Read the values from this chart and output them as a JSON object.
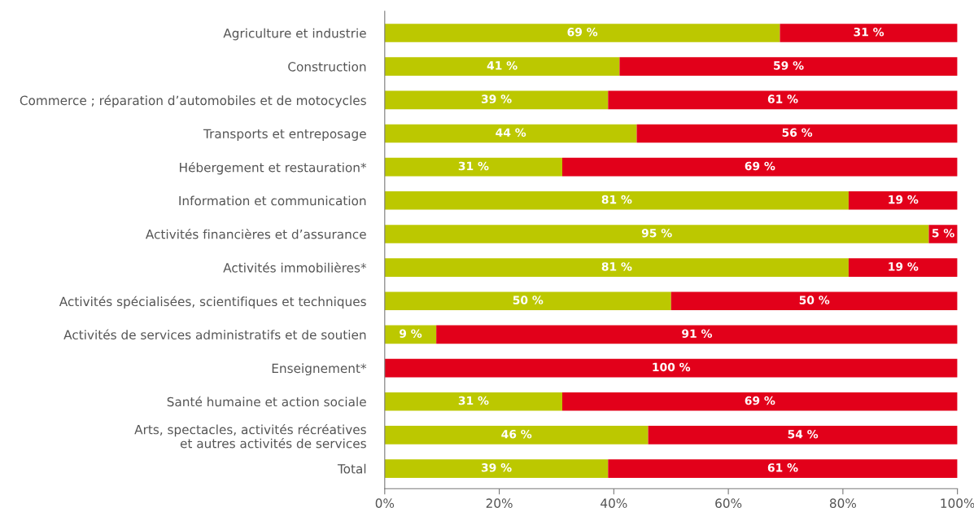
{
  "chart_data": {
    "type": "bar",
    "orientation": "horizontal",
    "stacked": true,
    "categories": [
      "Agriculture et industrie",
      "Construction",
      "Commerce ; réparation d’automobiles et de motocycles",
      "Transports et entreposage",
      "Hébergement et restauration*",
      "Information et communication",
      "Activités financières et d’assurance",
      "Activités immobilières*",
      "Activités spécialisées, scientifiques et techniques",
      "Activités de services administratifs et de soutien",
      "Enseignement*",
      "Santé humaine et action sociale",
      "Arts, spectacles, activités récréatives\net autres activités de services",
      "Total"
    ],
    "series": [
      {
        "color": "#bcc800",
        "values": [
          69,
          41,
          39,
          44,
          31,
          81,
          95,
          81,
          50,
          9,
          0,
          31,
          46,
          39
        ],
        "value_labels": [
          "69 %",
          "41 %",
          "39 %",
          "44 %",
          "31 %",
          "81 %",
          "95 %",
          "81 %",
          "50 %",
          "9 %",
          null,
          "31 %",
          "46 %",
          "39 %"
        ]
      },
      {
        "color": "#e2001a",
        "values": [
          31,
          59,
          61,
          56,
          69,
          19,
          5,
          19,
          50,
          91,
          100,
          69,
          54,
          61
        ],
        "value_labels": [
          "31 %",
          "59 %",
          "61 %",
          "56 %",
          "69 %",
          "19 %",
          "5 %",
          "19 %",
          "50 %",
          "91 %",
          "100 %",
          "69 %",
          "54 %",
          "61 %"
        ]
      }
    ],
    "xlim": [
      0,
      100
    ],
    "xticks": [
      {
        "value": 0,
        "label": "0%"
      },
      {
        "value": 20,
        "label": "20%"
      },
      {
        "value": 40,
        "label": "40%"
      },
      {
        "value": 60,
        "label": "60%"
      },
      {
        "value": 80,
        "label": "80%"
      },
      {
        "value": 100,
        "label": "100%"
      }
    ],
    "grid": false,
    "legend": false
  }
}
